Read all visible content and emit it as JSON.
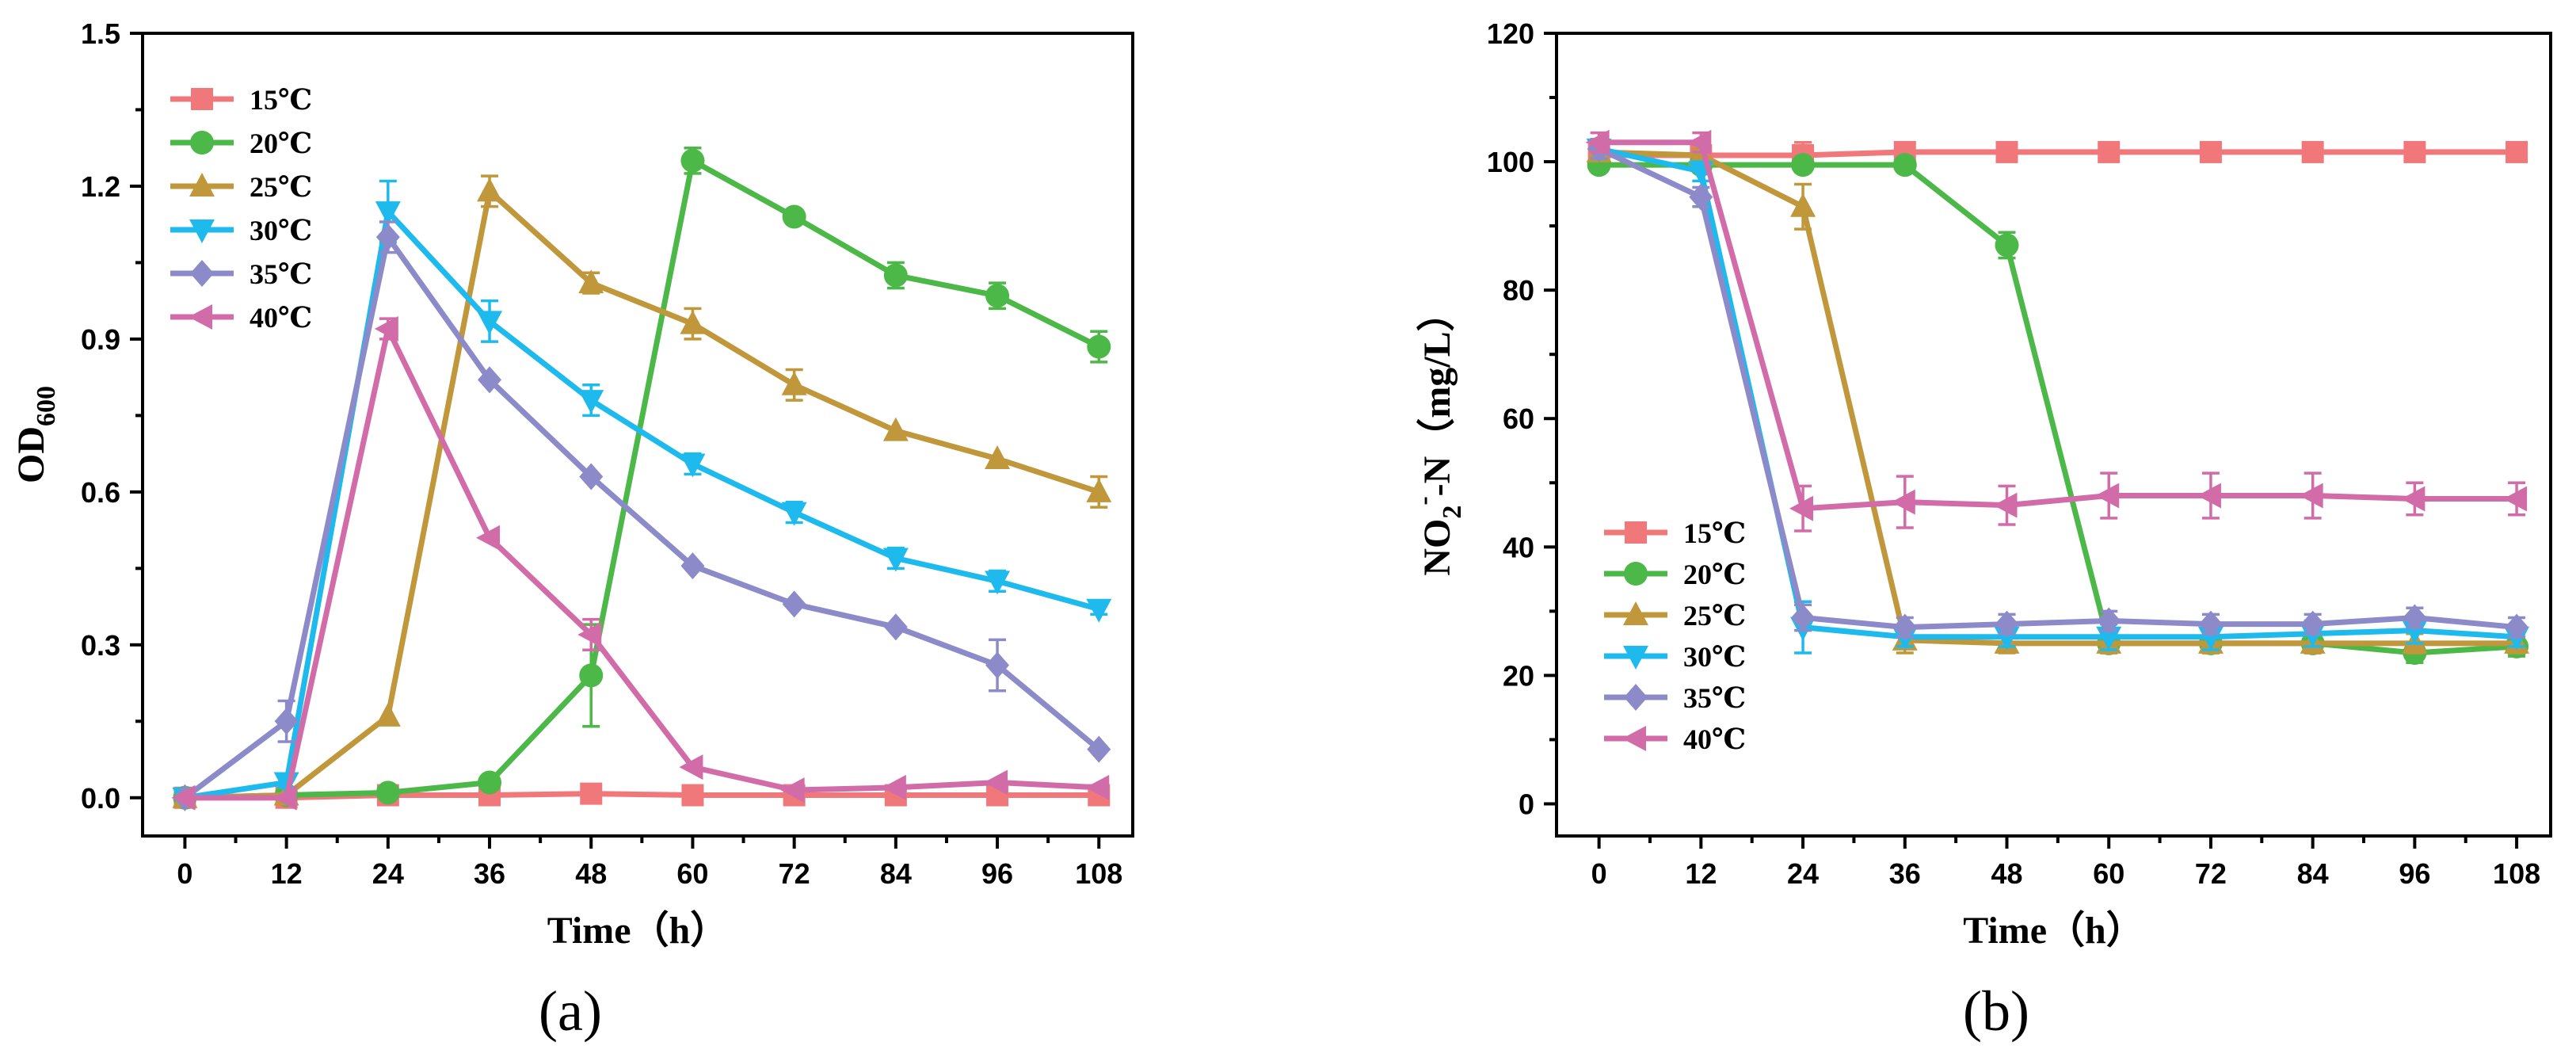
{
  "chart_data": [
    {
      "panel": "(a)",
      "type": "line",
      "xlabel": "Time（h）",
      "ylabel_main": "OD",
      "ylabel_sub": "600",
      "x": [
        0,
        12,
        24,
        36,
        48,
        60,
        72,
        84,
        96,
        108
      ],
      "xticks": [
        "0",
        "12",
        "24",
        "36",
        "48",
        "60",
        "72",
        "84",
        "96",
        "108"
      ],
      "ylim": [
        -0.075,
        1.5
      ],
      "yticks": [
        "0.0",
        "0.3",
        "0.6",
        "0.9",
        "1.2",
        "1.5"
      ],
      "ytick_values": [
        0,
        0.3,
        0.6,
        0.9,
        1.2,
        1.5
      ],
      "series": [
        {
          "name": "15℃",
          "color": "#f0787a",
          "marker": "square",
          "values": [
            0.0,
            0.0,
            0.005,
            0.005,
            0.008,
            0.005,
            0.005,
            0.005,
            0.005,
            0.005
          ],
          "errors": [
            0,
            0,
            0,
            0,
            0.01,
            0,
            0,
            0,
            0,
            0
          ]
        },
        {
          "name": "20℃",
          "color": "#4cb848",
          "marker": "circle",
          "values": [
            0.0,
            0.005,
            0.01,
            0.03,
            0.24,
            1.25,
            1.14,
            1.025,
            0.985,
            0.885
          ],
          "errors": [
            0,
            0,
            0,
            0,
            0.1,
            0.025,
            0,
            0.025,
            0.025,
            0.03
          ]
        },
        {
          "name": "25℃",
          "color": "#c0973a",
          "marker": "triangle-up",
          "values": [
            0.0,
            0.005,
            0.16,
            1.19,
            1.01,
            0.93,
            0.81,
            0.72,
            0.665,
            0.6
          ],
          "errors": [
            0,
            0,
            0,
            0.03,
            0.02,
            0.03,
            0.03,
            0,
            0,
            0.03
          ]
        },
        {
          "name": "30℃",
          "color": "#1ebaee",
          "marker": "triangle-down",
          "values": [
            0.0,
            0.03,
            1.15,
            0.935,
            0.78,
            0.655,
            0.56,
            0.47,
            0.425,
            0.37
          ],
          "errors": [
            0,
            0.01,
            0.06,
            0.04,
            0.03,
            0.02,
            0.02,
            0.02,
            0.02,
            0.01
          ]
        },
        {
          "name": "35℃",
          "color": "#8d8ac9",
          "marker": "diamond",
          "values": [
            0.0,
            0.15,
            1.1,
            0.82,
            0.63,
            0.455,
            0.38,
            0.335,
            0.26,
            0.095
          ],
          "errors": [
            0,
            0.04,
            0.03,
            0,
            0,
            0,
            0,
            0,
            0.05,
            0
          ]
        },
        {
          "name": "40℃",
          "color": "#d26ca9",
          "marker": "triangle-left",
          "values": [
            0.0,
            0.0,
            0.92,
            0.51,
            0.32,
            0.06,
            0.015,
            0.02,
            0.03,
            0.02
          ],
          "errors": [
            0,
            0,
            0.02,
            0,
            0.03,
            0,
            0,
            0,
            0,
            0
          ]
        }
      ]
    },
    {
      "panel": "(b)",
      "type": "line",
      "xlabel": "Time（h）",
      "ylabel_main": "NO",
      "ylabel_sub": "2",
      "ylabel_sup": "-",
      "ylabel_rest": "-N（mg/L）",
      "x": [
        0,
        12,
        24,
        36,
        48,
        60,
        72,
        84,
        96,
        108
      ],
      "xticks": [
        "0",
        "12",
        "24",
        "36",
        "48",
        "60",
        "72",
        "84",
        "96",
        "108"
      ],
      "ylim": [
        -5,
        120
      ],
      "yticks": [
        "0",
        "20",
        "40",
        "60",
        "80",
        "100",
        "120"
      ],
      "ytick_values": [
        0,
        20,
        40,
        60,
        80,
        100,
        120
      ],
      "series": [
        {
          "name": "15℃",
          "color": "#f0787a",
          "marker": "square",
          "values": [
            101,
            101,
            101,
            101.5,
            101.5,
            101.5,
            101.5,
            101.5,
            101.5,
            101.5
          ],
          "errors": [
            1.5,
            1,
            2,
            0,
            0,
            0,
            0,
            0,
            0,
            0
          ]
        },
        {
          "name": "20℃",
          "color": "#4cb848",
          "marker": "circle",
          "values": [
            99.5,
            99.5,
            99.5,
            99.5,
            87,
            25,
            25,
            25,
            23.5,
            24.5
          ],
          "errors": [
            1,
            1,
            1,
            1,
            2,
            1.5,
            1.5,
            1.5,
            1.5,
            1.5
          ]
        },
        {
          "name": "25℃",
          "color": "#c0973a",
          "marker": "triangle-up",
          "values": [
            101.5,
            101,
            93,
            25.5,
            25,
            25,
            25,
            25,
            25,
            25
          ],
          "errors": [
            1,
            1,
            3.5,
            2,
            1.5,
            1.5,
            1.5,
            1.5,
            1.5,
            1.5
          ]
        },
        {
          "name": "30℃",
          "color": "#1ebaee",
          "marker": "triangle-down",
          "values": [
            102,
            98.5,
            27.5,
            26,
            26,
            26,
            26,
            26.5,
            27,
            26
          ],
          "errors": [
            1.5,
            1.5,
            4,
            1.5,
            1.5,
            2,
            2,
            2,
            2,
            1.5
          ]
        },
        {
          "name": "35℃",
          "color": "#8d8ac9",
          "marker": "diamond",
          "values": [
            102,
            94.5,
            29,
            27.5,
            28,
            28.5,
            28,
            28,
            29,
            27.5
          ],
          "errors": [
            1.5,
            1.5,
            2,
            1.5,
            1.5,
            1.5,
            1.5,
            1.5,
            1.5,
            1.5
          ]
        },
        {
          "name": "40℃",
          "color": "#d26ca9",
          "marker": "triangle-left",
          "values": [
            103,
            103,
            46,
            47,
            46.5,
            48,
            48,
            48,
            47.5,
            47.5
          ],
          "errors": [
            1.5,
            1.5,
            3.5,
            4,
            3,
            3.5,
            3.5,
            3.5,
            2.5,
            2.5
          ]
        }
      ]
    }
  ]
}
